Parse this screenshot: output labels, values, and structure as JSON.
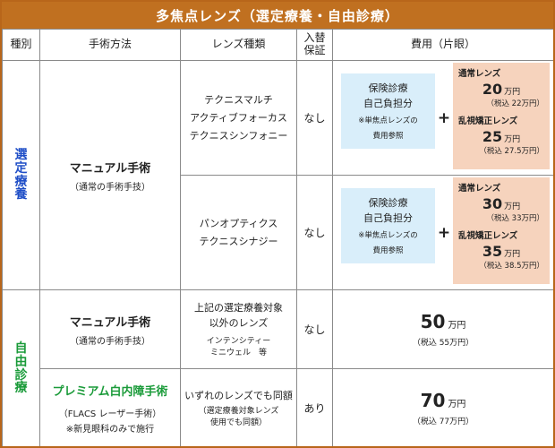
{
  "title": "多焦点レンズ（選定療養・自由診療）",
  "headers": {
    "category": "種別",
    "method": "手術方法",
    "lens": "レンズ種類",
    "insurance_line1": "入替",
    "insurance_line2": "保証",
    "cost": "費用（片眼）"
  },
  "categories": {
    "selective": [
      "選",
      "定",
      "療",
      "養"
    ],
    "free": [
      "自",
      "由",
      "診",
      "療"
    ]
  },
  "rows": {
    "manual_selective": {
      "method_main": "マニュアル手術",
      "method_sub": "（通常の手術手技）"
    },
    "r1": {
      "lenses": [
        "テクニスマルチ",
        "アクティブフォーカス",
        "テクニスシンフォニー"
      ],
      "insurance": "なし",
      "cost_left_line1": "保険診療",
      "cost_left_line2": "自己負担分",
      "cost_left_note1": "※単焦点レンズの",
      "cost_left_note2": "費用参照",
      "plus": "+",
      "normal_label": "通常レンズ",
      "normal_price": "20",
      "normal_unit": "万円",
      "normal_tax": "（税込 22万円）",
      "astig_label": "乱視矯正レンズ",
      "astig_price": "25",
      "astig_unit": "万円",
      "astig_tax": "（税込 27.5万円）"
    },
    "r2": {
      "lenses": [
        "パンオプティクス",
        "テクニスシナジー"
      ],
      "insurance": "なし",
      "cost_left_line1": "保険診療",
      "cost_left_line2": "自己負担分",
      "cost_left_note1": "※単焦点レンズの",
      "cost_left_note2": "費用参照",
      "plus": "+",
      "normal_label": "通常レンズ",
      "normal_price": "30",
      "normal_unit": "万円",
      "normal_tax": "（税込 33万円）",
      "astig_label": "乱視矯正レンズ",
      "astig_price": "35",
      "astig_unit": "万円",
      "astig_tax": "（税込 38.5万円）"
    },
    "r3": {
      "method_main": "マニュアル手術",
      "method_sub": "（通常の手術手技）",
      "lens_line1": "上記の選定療養対象",
      "lens_line2": "以外のレンズ",
      "lens_small1": "インテンシティー",
      "lens_small2": "ミニウェル　等",
      "insurance": "なし",
      "price": "50",
      "unit": "万円",
      "tax": "（税込 55万円）"
    },
    "r4": {
      "method_main": "プレミアム白内障手術",
      "method_sub": "（FLACS レーザー手術）",
      "method_note": "※新見眼科のみで施行",
      "lens_line1": "いずれのレンズでも同額",
      "lens_small1": "（選定療養対象レンズ",
      "lens_small2": "使用でも同額）",
      "insurance": "あり",
      "price": "70",
      "unit": "万円",
      "tax": "（税込 77万円）"
    }
  },
  "colors": {
    "title_bg": "#c07020",
    "frame": "#b8661a",
    "selective_text": "#1f4ec7",
    "free_text": "#1b9b3a",
    "blue_box": "#d9eefa",
    "pink_box": "#f6d3bd"
  }
}
